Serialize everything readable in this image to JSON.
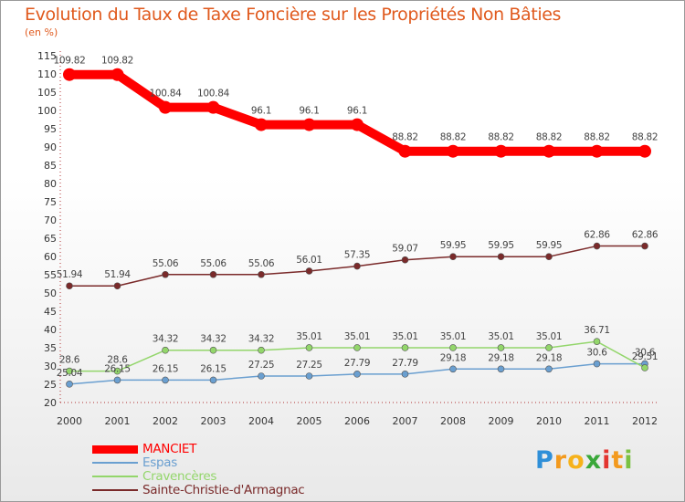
{
  "chart_data": {
    "type": "line",
    "title": "Evolution du Taux de Taxe Foncière sur les Propriétés Non Bâties",
    "ylabel": "(en %)",
    "xlabel": "",
    "x": [
      "2000",
      "2001",
      "2002",
      "2003",
      "2004",
      "2005",
      "2006",
      "2007",
      "2008",
      "2009",
      "2010",
      "2011",
      "2012"
    ],
    "ylim": [
      20,
      115
    ],
    "yticks": [
      20,
      25,
      30,
      35,
      40,
      45,
      50,
      55,
      60,
      65,
      70,
      75,
      80,
      85,
      90,
      95,
      100,
      105,
      110,
      115
    ],
    "grid": false,
    "legend_position": "bottom-left",
    "series": [
      {
        "name": "MANCIET",
        "color": "#ff0000",
        "values": [
          109.82,
          109.82,
          100.84,
          100.84,
          96.1,
          96.1,
          96.1,
          88.82,
          88.82,
          88.82,
          88.82,
          88.82,
          88.82
        ],
        "labels": [
          "109.82",
          "109.82",
          "100.84",
          "100.84",
          "96.1",
          "96.1",
          "96.1",
          "88.82",
          "88.82",
          "88.82",
          "88.82",
          "88.82",
          "88.82"
        ]
      },
      {
        "name": "Espas",
        "color": "#6a9fd0",
        "values": [
          25.04,
          26.15,
          26.15,
          26.15,
          27.25,
          27.25,
          27.79,
          27.79,
          29.18,
          29.18,
          29.18,
          30.6,
          30.6
        ],
        "labels": [
          "25.04",
          "26.15",
          "26.15",
          "26.15",
          "27.25",
          "27.25",
          "27.79",
          "27.79",
          "29.18",
          "29.18",
          "29.18",
          "30.6",
          "30.6"
        ]
      },
      {
        "name": "Cravencères",
        "color": "#93d66b",
        "values": [
          28.6,
          28.6,
          34.32,
          34.32,
          34.32,
          35.01,
          35.01,
          35.01,
          35.01,
          35.01,
          35.01,
          36.71,
          29.51
        ],
        "labels": [
          "28.6",
          "28.6",
          "34.32",
          "34.32",
          "34.32",
          "35.01",
          "35.01",
          "35.01",
          "35.01",
          "35.01",
          "35.01",
          "36.71",
          "29.51"
        ]
      },
      {
        "name": "Sainte-Christie-d'Armagnac",
        "color": "#7a2a2a",
        "values": [
          51.94,
          51.94,
          55.06,
          55.06,
          55.06,
          56.01,
          57.35,
          59.07,
          59.95,
          59.95,
          59.95,
          62.86,
          62.86
        ],
        "labels": [
          "51.94",
          "51.94",
          "55.06",
          "55.06",
          "55.06",
          "56.01",
          "57.35",
          "59.07",
          "59.95",
          "59.95",
          "59.95",
          "62.86",
          "62.86"
        ]
      }
    ]
  },
  "brand": {
    "letters": [
      "P",
      "r",
      "o",
      "x",
      "i",
      "t",
      "i"
    ],
    "colors": [
      "#2f8fd8",
      "#f39a1e",
      "#f6b21a",
      "#3aa83a",
      "#e3342f",
      "#f39a1e",
      "#7ac142"
    ]
  }
}
